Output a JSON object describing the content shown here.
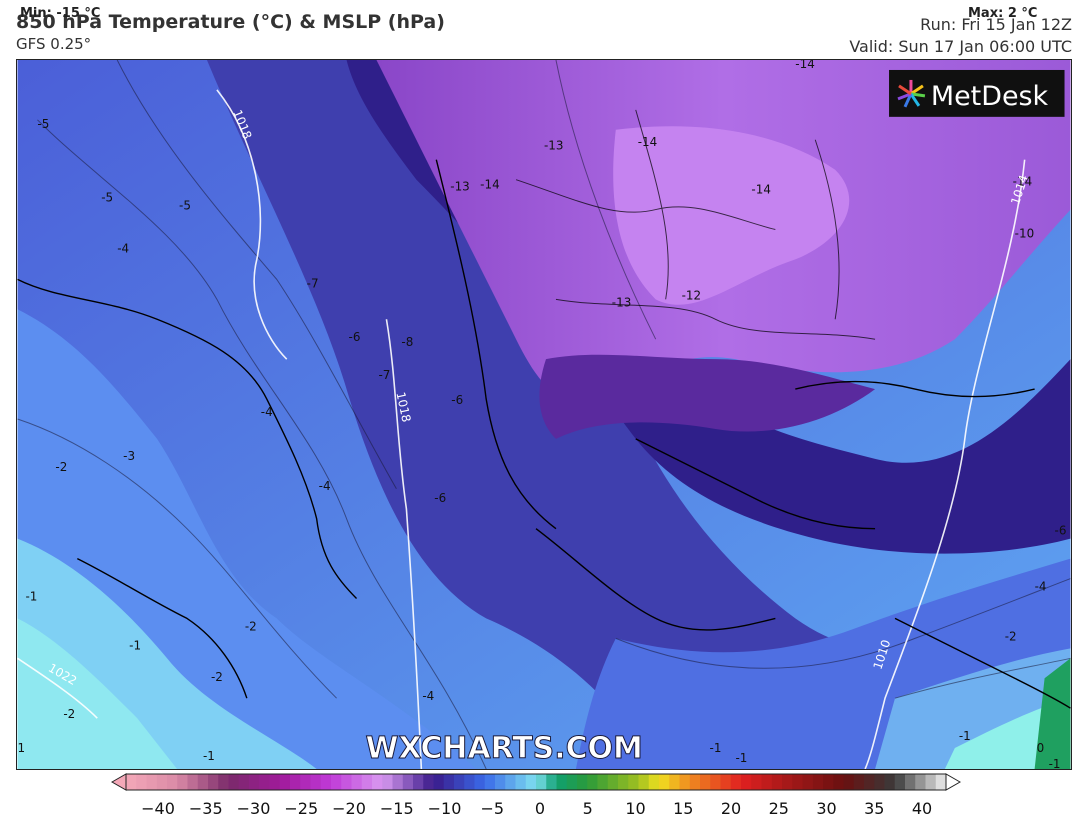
{
  "header": {
    "title": "850 hPa Temperature (°C) & MSLP (hPa)",
    "model": "GFS 0.25°",
    "run": "Run: Fri 15 Jan 12Z",
    "valid": "Valid: Sun 17 Jan 06:00 UTC"
  },
  "brand": {
    "logo_text": "MetDesk",
    "watermark": "WXCHARTS.COM"
  },
  "legend": {
    "min_label": "Min: -15 °C",
    "max_label": "Max: 2 °C",
    "ticks": [
      "−40",
      "−35",
      "−30",
      "−25",
      "−20",
      "−15",
      "−10",
      "−5",
      "0",
      "5",
      "10",
      "15",
      "20",
      "25",
      "30",
      "35",
      "40"
    ]
  },
  "temperature_labels": [
    "-5",
    "-5",
    "-5",
    "-4",
    "-7",
    "-6",
    "-8",
    "-7",
    "-6",
    "-4",
    "-3",
    "-2",
    "-4",
    "-6",
    "-1",
    "-2",
    "-1",
    "-2",
    "-2",
    "-4",
    "-1",
    "-13",
    "-13",
    "-14",
    "-14",
    "-14",
    "-13",
    "-12",
    "-14",
    "-14",
    "-10",
    "-6",
    "-4",
    "-2",
    "-1",
    "-1",
    "-1",
    "-1",
    "0",
    "1"
  ],
  "pressure_labels": [
    "1018",
    "1018",
    "1010",
    "1014",
    "1022"
  ],
  "colors": {
    "very_cold": "#9d5ad8",
    "cold_purple": "#7a3fbf",
    "deep_indigo": "#3b228f",
    "indigo": "#3a3aa8",
    "blue": "#4a63e0",
    "light_blue": "#5d8ef2",
    "cyan": "#7fd8f2",
    "green": "#1fa060"
  }
}
